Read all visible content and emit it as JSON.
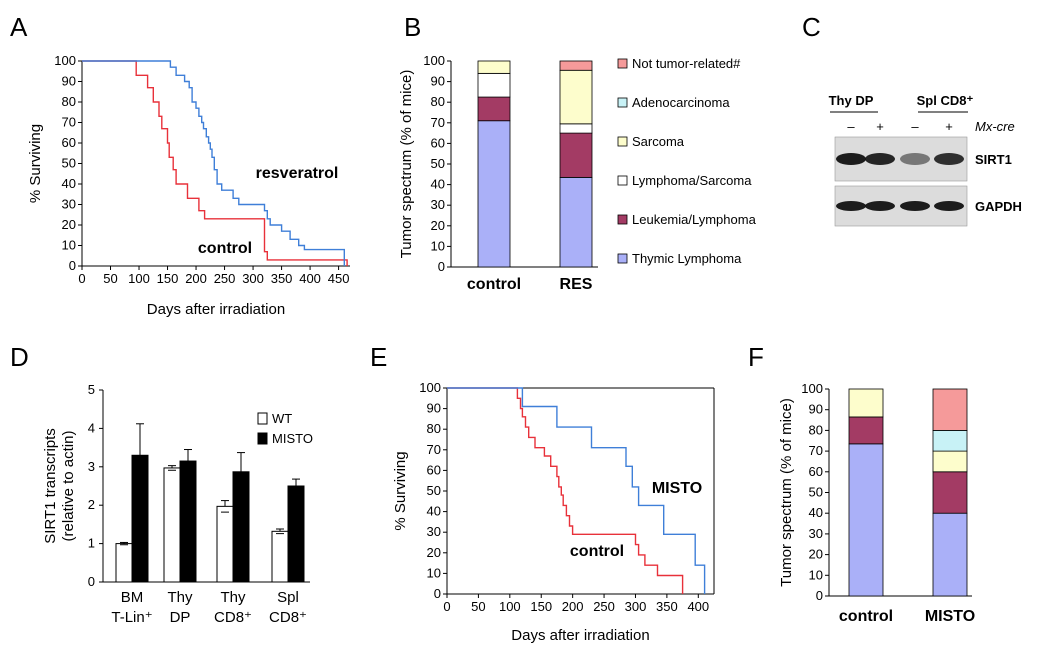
{
  "panel_labels": [
    "A",
    "B",
    "C",
    "D",
    "E",
    "F"
  ],
  "colors": {
    "control": "#e8313a",
    "treated": "#3f7fd8",
    "thymic": "#aab0f8",
    "leukemia": "#a33b64",
    "lymph_sarcoma": "#ffffff",
    "sarcoma": "#fdfdcc",
    "adeno": "#c8f2f6",
    "not_tumor": "#f59a9a",
    "wt_bar": "#ffffff",
    "misto_bar": "#000000"
  },
  "legend_b": [
    "Not tumor-related#",
    "Adenocarcinoma",
    "Sarcoma",
    "Lymphoma/Sarcoma",
    "Leukemia/Lymphoma",
    "Thymic Lymphoma"
  ],
  "panel_c": {
    "groups": [
      "Thy DP",
      "Spl CD8⁺"
    ],
    "signs": [
      "–",
      "+",
      "–",
      "+"
    ],
    "genotype_label": "Mx-cre",
    "bands": [
      "SIRT1",
      "GAPDH"
    ],
    "intensities": [
      [
        0.95,
        0.9,
        0.5,
        0.85
      ],
      [
        0.95,
        0.95,
        0.95,
        0.95
      ]
    ]
  },
  "chart_data": [
    {
      "panel": "A",
      "type": "line",
      "xlabel": "Days after irradiation",
      "ylabel": "% Surviving",
      "xlim": [
        0,
        470
      ],
      "ylim": [
        0,
        100
      ],
      "xticks": [
        0,
        50,
        100,
        150,
        200,
        250,
        300,
        350,
        400,
        450
      ],
      "yticks": [
        0,
        10,
        20,
        30,
        40,
        50,
        60,
        70,
        80,
        90,
        100
      ],
      "series": [
        {
          "name": "control",
          "label_pos": "lower",
          "steps": [
            [
              0,
              100
            ],
            [
              95,
              100
            ],
            [
              95,
              93
            ],
            [
              115,
              93
            ],
            [
              115,
              87
            ],
            [
              125,
              87
            ],
            [
              125,
              80
            ],
            [
              135,
              80
            ],
            [
              135,
              73
            ],
            [
              140,
              73
            ],
            [
              140,
              67
            ],
            [
              150,
              67
            ],
            [
              150,
              60
            ],
            [
              153,
              60
            ],
            [
              153,
              53
            ],
            [
              160,
              53
            ],
            [
              160,
              47
            ],
            [
              165,
              47
            ],
            [
              165,
              40
            ],
            [
              185,
              40
            ],
            [
              185,
              33
            ],
            [
              205,
              33
            ],
            [
              205,
              27
            ],
            [
              215,
              27
            ],
            [
              215,
              23
            ],
            [
              320,
              23
            ],
            [
              320,
              7
            ],
            [
              325,
              7
            ],
            [
              325,
              3
            ],
            [
              465,
              3
            ],
            [
              465,
              0
            ]
          ]
        },
        {
          "name": "resveratrol",
          "label_pos": "upper",
          "steps": [
            [
              0,
              100
            ],
            [
              155,
              100
            ],
            [
              155,
              97
            ],
            [
              165,
              97
            ],
            [
              165,
              93
            ],
            [
              180,
              93
            ],
            [
              180,
              90
            ],
            [
              188,
              90
            ],
            [
              188,
              87
            ],
            [
              193,
              87
            ],
            [
              193,
              80
            ],
            [
              200,
              80
            ],
            [
              200,
              77
            ],
            [
              205,
              77
            ],
            [
              205,
              73
            ],
            [
              210,
              73
            ],
            [
              210,
              70
            ],
            [
              213,
              70
            ],
            [
              213,
              67
            ],
            [
              218,
              67
            ],
            [
              218,
              63
            ],
            [
              222,
              63
            ],
            [
              222,
              60
            ],
            [
              225,
              60
            ],
            [
              225,
              57
            ],
            [
              228,
              57
            ],
            [
              228,
              53
            ],
            [
              232,
              53
            ],
            [
              232,
              47
            ],
            [
              237,
              47
            ],
            [
              237,
              40
            ],
            [
              245,
              40
            ],
            [
              245,
              37
            ],
            [
              265,
              37
            ],
            [
              265,
              33
            ],
            [
              275,
              33
            ],
            [
              275,
              30
            ],
            [
              320,
              30
            ],
            [
              320,
              27
            ],
            [
              325,
              27
            ],
            [
              325,
              23
            ],
            [
              330,
              23
            ],
            [
              330,
              20
            ],
            [
              350,
              20
            ],
            [
              350,
              17
            ],
            [
              365,
              17
            ],
            [
              365,
              13
            ],
            [
              380,
              13
            ],
            [
              380,
              10
            ],
            [
              390,
              10
            ],
            [
              390,
              8
            ],
            [
              460,
              8
            ],
            [
              460,
              0
            ]
          ]
        }
      ]
    },
    {
      "panel": "B",
      "type": "bar",
      "stacked": true,
      "ylabel": "Tumor spectrum (% of mice)",
      "ylim": [
        0,
        100
      ],
      "yticks": [
        0,
        10,
        20,
        30,
        40,
        50,
        60,
        70,
        80,
        90,
        100
      ],
      "categories": [
        "control",
        "RES"
      ],
      "series": [
        {
          "name": "Thymic Lymphoma",
          "values": [
            71,
            43.5
          ]
        },
        {
          "name": "Leukemia/Lymphoma",
          "values": [
            11.5,
            21.5
          ]
        },
        {
          "name": "Lymphoma/Sarcoma",
          "values": [
            11.5,
            4.5
          ]
        },
        {
          "name": "Sarcoma",
          "values": [
            6,
            26
          ]
        },
        {
          "name": "Adenocarcinoma",
          "values": [
            0,
            0
          ]
        },
        {
          "name": "Not tumor-related#",
          "values": [
            0,
            4.5
          ]
        }
      ]
    },
    {
      "panel": "D",
      "type": "bar",
      "ylabel_lines": [
        "SIRT1 transcripts",
        "(relative to actin)"
      ],
      "ylim": [
        0,
        5
      ],
      "yticks": [
        0,
        1,
        2,
        3,
        4,
        5
      ],
      "categories": [
        [
          "BM",
          "T-Lin⁺"
        ],
        [
          "Thy",
          "DP"
        ],
        [
          "Thy",
          "CD8⁺"
        ],
        [
          "Spl",
          "CD8⁺"
        ]
      ],
      "series": [
        {
          "name": "WT",
          "values": [
            1.0,
            2.97,
            1.97,
            1.32
          ],
          "errors": [
            0.03,
            0.06,
            0.15,
            0.06
          ]
        },
        {
          "name": "MISTO",
          "values": [
            3.3,
            3.15,
            2.87,
            2.5
          ],
          "errors": [
            0.82,
            0.3,
            0.5,
            0.18
          ]
        }
      ]
    },
    {
      "panel": "E",
      "type": "line",
      "xlabel": "Days after irradiation",
      "ylabel": "% Surviving",
      "xlim": [
        0,
        425
      ],
      "ylim": [
        0,
        100
      ],
      "xticks": [
        0,
        50,
        100,
        150,
        200,
        250,
        300,
        350,
        400
      ],
      "yticks": [
        0,
        10,
        20,
        30,
        40,
        50,
        60,
        70,
        80,
        90,
        100
      ],
      "series": [
        {
          "name": "control",
          "label_pos": "lower",
          "steps": [
            [
              0,
              100
            ],
            [
              112,
              100
            ],
            [
              112,
              95
            ],
            [
              117,
              95
            ],
            [
              117,
              90
            ],
            [
              120,
              90
            ],
            [
              120,
              86
            ],
            [
              125,
              86
            ],
            [
              125,
              81
            ],
            [
              130,
              81
            ],
            [
              130,
              76
            ],
            [
              140,
              76
            ],
            [
              140,
              71
            ],
            [
              155,
              71
            ],
            [
              155,
              67
            ],
            [
              165,
              67
            ],
            [
              165,
              62
            ],
            [
              175,
              62
            ],
            [
              175,
              57
            ],
            [
              178,
              57
            ],
            [
              178,
              52
            ],
            [
              182,
              52
            ],
            [
              182,
              48
            ],
            [
              185,
              48
            ],
            [
              185,
              43
            ],
            [
              190,
              43
            ],
            [
              190,
              38
            ],
            [
              195,
              38
            ],
            [
              195,
              33
            ],
            [
              200,
              33
            ],
            [
              200,
              29
            ],
            [
              300,
              29
            ],
            [
              300,
              24
            ],
            [
              305,
              24
            ],
            [
              305,
              19
            ],
            [
              315,
              19
            ],
            [
              315,
              14
            ],
            [
              335,
              14
            ],
            [
              335,
              9
            ],
            [
              375,
              9
            ],
            [
              375,
              0
            ]
          ]
        },
        {
          "name": "MISTO",
          "label_pos": "upper",
          "steps": [
            [
              0,
              100
            ],
            [
              120,
              100
            ],
            [
              120,
              91
            ],
            [
              175,
              91
            ],
            [
              175,
              81
            ],
            [
              230,
              81
            ],
            [
              230,
              71
            ],
            [
              285,
              71
            ],
            [
              285,
              62
            ],
            [
              295,
              62
            ],
            [
              295,
              52
            ],
            [
              305,
              52
            ],
            [
              305,
              43
            ],
            [
              345,
              43
            ],
            [
              345,
              29
            ],
            [
              395,
              29
            ],
            [
              395,
              14
            ],
            [
              410,
              14
            ],
            [
              410,
              0
            ]
          ]
        }
      ]
    },
    {
      "panel": "F",
      "type": "bar",
      "stacked": true,
      "ylabel": "Tumor spectrum (% of mice)",
      "ylim": [
        0,
        100
      ],
      "yticks": [
        0,
        10,
        20,
        30,
        40,
        50,
        60,
        70,
        80,
        90,
        100
      ],
      "categories": [
        "control",
        "MISTO"
      ],
      "series": [
        {
          "name": "Thymic Lymphoma",
          "values": [
            73.5,
            40
          ]
        },
        {
          "name": "Leukemia/Lymphoma",
          "values": [
            13,
            20
          ]
        },
        {
          "name": "Lymphoma/Sarcoma",
          "values": [
            0,
            0
          ]
        },
        {
          "name": "Sarcoma",
          "values": [
            13.5,
            10
          ]
        },
        {
          "name": "Adenocarcinoma",
          "values": [
            0,
            10
          ]
        },
        {
          "name": "Not tumor-related#",
          "values": [
            0,
            20
          ]
        }
      ]
    }
  ]
}
